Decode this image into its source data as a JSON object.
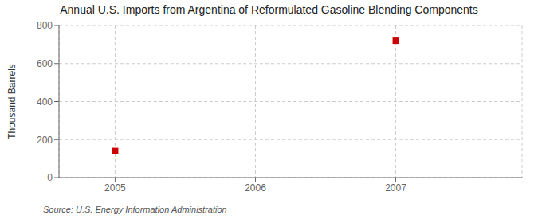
{
  "chart_data": {
    "type": "scatter",
    "title": "Annual U.S. Imports from Argentina of Reformulated Gasoline Blending Components",
    "ylabel": "Thousand Barrels",
    "source": "Source: U.S. Energy Information Administration",
    "x": [
      2005,
      2007
    ],
    "values": [
      140,
      720
    ],
    "xlim": [
      2004.6,
      2007.9
    ],
    "ylim": [
      0,
      800
    ],
    "xticks": [
      2005,
      2006,
      2007
    ],
    "yticks": [
      0,
      200,
      400,
      600,
      800
    ],
    "grid": true,
    "marker": "square",
    "color": "#cc0000"
  }
}
